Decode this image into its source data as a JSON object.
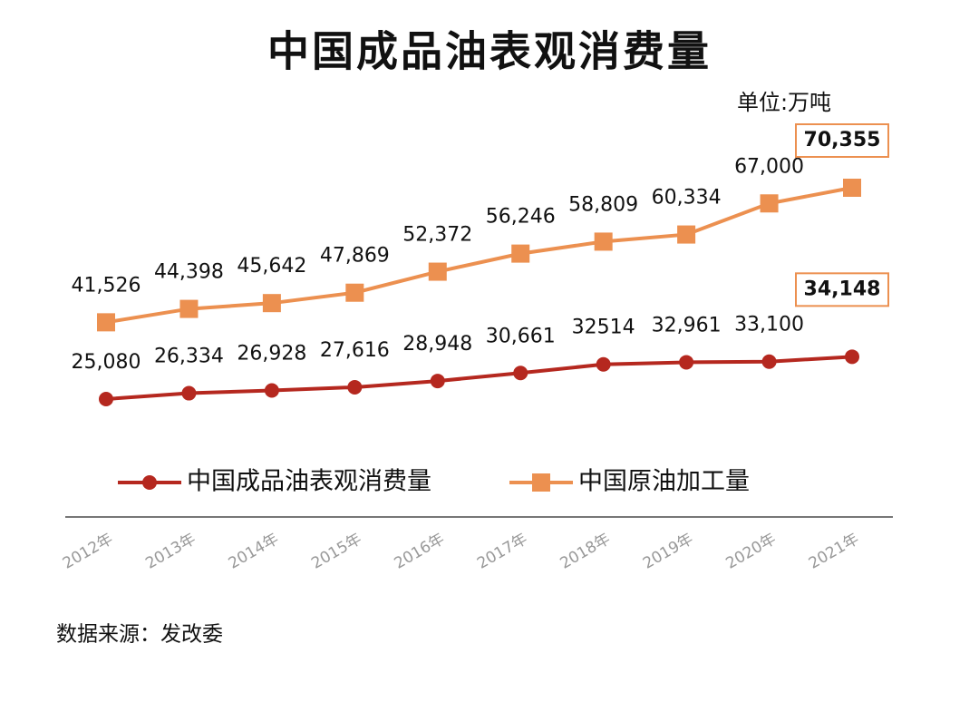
{
  "chart_data": {
    "type": "line",
    "title": "中国成品油表观消费量",
    "unit": "单位:万吨",
    "source": "数据来源：发改委",
    "categories": [
      "2012年",
      "2013年",
      "2014年",
      "2015年",
      "2016年",
      "2017年",
      "2018年",
      "2019年",
      "2020年",
      "2021年"
    ],
    "series": [
      {
        "name": "中国成品油表观消费量",
        "color": "#b5281f",
        "marker": "circle",
        "values": [
          25080,
          26334,
          26928,
          27616,
          28948,
          30661,
          32514,
          32961,
          33100,
          34148
        ],
        "value_labels": [
          "25,080",
          "26,334",
          "26,928",
          "27,616",
          "28,948",
          "30,661",
          "32514",
          "32,961",
          "33,100",
          "34,148"
        ]
      },
      {
        "name": "中国原油加工量",
        "color": "#ec9050",
        "marker": "square",
        "values": [
          41526,
          44398,
          45642,
          47869,
          52372,
          56246,
          58809,
          60334,
          67000,
          70355
        ],
        "value_labels": [
          "41,526",
          "44,398",
          "45,642",
          "47,869",
          "52,372",
          "56,246",
          "58,809",
          "60,334",
          "67,000",
          "70,355"
        ]
      }
    ]
  }
}
